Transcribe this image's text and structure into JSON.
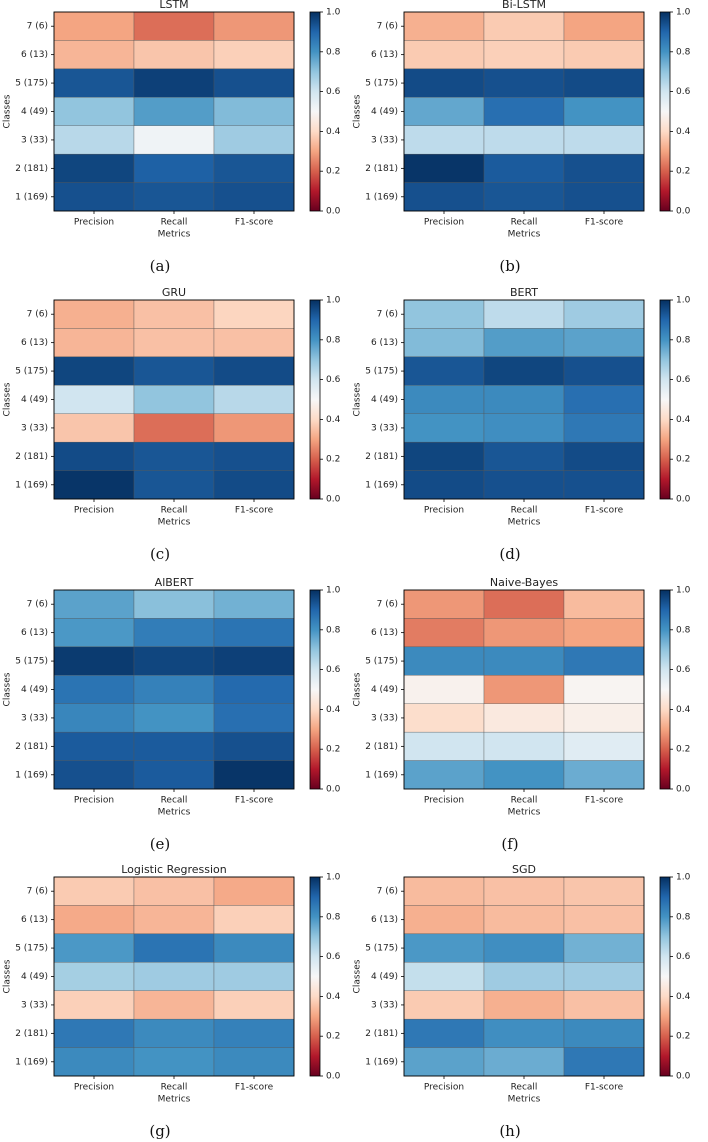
{
  "figure": {
    "colormap": [
      "#67001f",
      "#b2182b",
      "#d6604d",
      "#f4a582",
      "#fddbc7",
      "#f7f7f7",
      "#d1e5f0",
      "#92c5de",
      "#4393c3",
      "#2166ac",
      "#053061"
    ],
    "colorbar_ticks": [
      "0.0",
      "0.2",
      "0.4",
      "0.6",
      "0.8",
      "1.0"
    ]
  },
  "chart_data": [
    {
      "type": "heatmap",
      "title": "LSTM",
      "caption": "(a)",
      "xlabel": "Metrics",
      "ylabel": "Classes",
      "x_categories": [
        "Precision",
        "Recall",
        "F1-score"
      ],
      "y_categories": [
        "7 (6)",
        "6 (13)",
        "5 (175)",
        "4 (49)",
        "3 (33)",
        "2 (181)",
        "1 (169)"
      ],
      "values": [
        [
          0.3,
          0.22,
          0.28
        ],
        [
          0.33,
          0.36,
          0.38
        ],
        [
          0.93,
          0.97,
          0.94
        ],
        [
          0.7,
          0.78,
          0.72
        ],
        [
          0.64,
          0.52,
          0.68
        ],
        [
          0.96,
          0.91,
          0.93
        ],
        [
          0.94,
          0.93,
          0.94
        ]
      ],
      "vmin": 0,
      "vmax": 1
    },
    {
      "type": "heatmap",
      "title": "Bi-LSTM",
      "caption": "(b)",
      "xlabel": "Metrics",
      "ylabel": "Classes",
      "x_categories": [
        "Precision",
        "Recall",
        "F1-score"
      ],
      "y_categories": [
        "7 (6)",
        "6 (13)",
        "5 (175)",
        "4 (49)",
        "3 (33)",
        "2 (181)",
        "1 (169)"
      ],
      "values": [
        [
          0.32,
          0.37,
          0.3
        ],
        [
          0.37,
          0.38,
          0.37
        ],
        [
          0.95,
          0.94,
          0.95
        ],
        [
          0.76,
          0.88,
          0.8
        ],
        [
          0.63,
          0.63,
          0.63
        ],
        [
          0.99,
          0.92,
          0.94
        ],
        [
          0.94,
          0.93,
          0.94
        ]
      ],
      "vmin": 0,
      "vmax": 1
    },
    {
      "type": "heatmap",
      "title": "GRU",
      "caption": "(c)",
      "xlabel": "Metrics",
      "ylabel": "Classes",
      "x_categories": [
        "Precision",
        "Recall",
        "F1-score"
      ],
      "y_categories": [
        "7 (6)",
        "6 (13)",
        "5 (175)",
        "4 (49)",
        "3 (33)",
        "2 (181)",
        "1 (169)"
      ],
      "values": [
        [
          0.32,
          0.35,
          0.39
        ],
        [
          0.33,
          0.35,
          0.35
        ],
        [
          0.96,
          0.93,
          0.95
        ],
        [
          0.6,
          0.7,
          0.64
        ],
        [
          0.36,
          0.22,
          0.28
        ],
        [
          0.95,
          0.93,
          0.94
        ],
        [
          0.99,
          0.93,
          0.95
        ]
      ],
      "vmin": 0,
      "vmax": 1
    },
    {
      "type": "heatmap",
      "title": "BERT",
      "caption": "(d)",
      "xlabel": "Metrics",
      "ylabel": "Classes",
      "x_categories": [
        "Precision",
        "Recall",
        "F1-score"
      ],
      "y_categories": [
        "7 (6)",
        "6 (13)",
        "5 (175)",
        "4 (49)",
        "3 (33)",
        "2 (181)",
        "1 (169)"
      ],
      "values": [
        [
          0.7,
          0.63,
          0.68
        ],
        [
          0.72,
          0.78,
          0.77
        ],
        [
          0.93,
          0.96,
          0.94
        ],
        [
          0.82,
          0.82,
          0.88
        ],
        [
          0.8,
          0.81,
          0.86
        ],
        [
          0.96,
          0.93,
          0.95
        ],
        [
          0.95,
          0.94,
          0.94
        ]
      ],
      "vmin": 0,
      "vmax": 1
    },
    {
      "type": "heatmap",
      "title": "AlBERT",
      "caption": "(e)",
      "xlabel": "Metrics",
      "ylabel": "Classes",
      "x_categories": [
        "Precision",
        "Recall",
        "F1-score"
      ],
      "y_categories": [
        "7 (6)",
        "6 (13)",
        "5 (175)",
        "4 (49)",
        "3 (33)",
        "2 (181)",
        "1 (169)"
      ],
      "values": [
        [
          0.77,
          0.71,
          0.74
        ],
        [
          0.79,
          0.85,
          0.87
        ],
        [
          0.98,
          0.96,
          0.97
        ],
        [
          0.87,
          0.84,
          0.89
        ],
        [
          0.83,
          0.8,
          0.88
        ],
        [
          0.92,
          0.92,
          0.94
        ],
        [
          0.94,
          0.92,
          0.99
        ]
      ],
      "vmin": 0,
      "vmax": 1
    },
    {
      "type": "heatmap",
      "title": "Naive-Bayes",
      "caption": "(f)",
      "xlabel": "Metrics",
      "ylabel": "Classes",
      "x_categories": [
        "Precision",
        "Recall",
        "F1-score"
      ],
      "y_categories": [
        "7 (6)",
        "6 (13)",
        "5 (175)",
        "4 (49)",
        "3 (33)",
        "2 (181)",
        "1 (169)"
      ],
      "values": [
        [
          0.28,
          0.22,
          0.34
        ],
        [
          0.24,
          0.28,
          0.3
        ],
        [
          0.82,
          0.82,
          0.86
        ],
        [
          0.48,
          0.28,
          0.49
        ],
        [
          0.41,
          0.45,
          0.47
        ],
        [
          0.6,
          0.6,
          0.56
        ],
        [
          0.77,
          0.8,
          0.75
        ]
      ],
      "vmin": 0,
      "vmax": 1
    },
    {
      "type": "heatmap",
      "title": "Logistic Regression",
      "caption": "(g)",
      "xlabel": "Metrics",
      "ylabel": "Classes",
      "x_categories": [
        "Precision",
        "Recall",
        "F1-score"
      ],
      "y_categories": [
        "7 (6)",
        "6 (13)",
        "5 (175)",
        "4 (49)",
        "3 (33)",
        "2 (181)",
        "1 (169)"
      ],
      "values": [
        [
          0.37,
          0.35,
          0.31
        ],
        [
          0.31,
          0.33,
          0.38
        ],
        [
          0.79,
          0.87,
          0.82
        ],
        [
          0.67,
          0.68,
          0.68
        ],
        [
          0.38,
          0.33,
          0.38
        ],
        [
          0.86,
          0.82,
          0.84
        ],
        [
          0.82,
          0.8,
          0.82
        ]
      ],
      "vmin": 0,
      "vmax": 1
    },
    {
      "type": "heatmap",
      "title": "SGD",
      "caption": "(h)",
      "xlabel": "Metrics",
      "ylabel": "Classes",
      "x_categories": [
        "Precision",
        "Recall",
        "F1-score"
      ],
      "y_categories": [
        "7 (6)",
        "6 (13)",
        "5 (175)",
        "4 (49)",
        "3 (33)",
        "2 (181)",
        "1 (169)"
      ],
      "values": [
        [
          0.34,
          0.35,
          0.36
        ],
        [
          0.32,
          0.34,
          0.35
        ],
        [
          0.79,
          0.81,
          0.74
        ],
        [
          0.62,
          0.68,
          0.68
        ],
        [
          0.37,
          0.32,
          0.35
        ],
        [
          0.86,
          0.81,
          0.82
        ],
        [
          0.77,
          0.75,
          0.86
        ]
      ],
      "vmin": 0,
      "vmax": 1
    }
  ]
}
